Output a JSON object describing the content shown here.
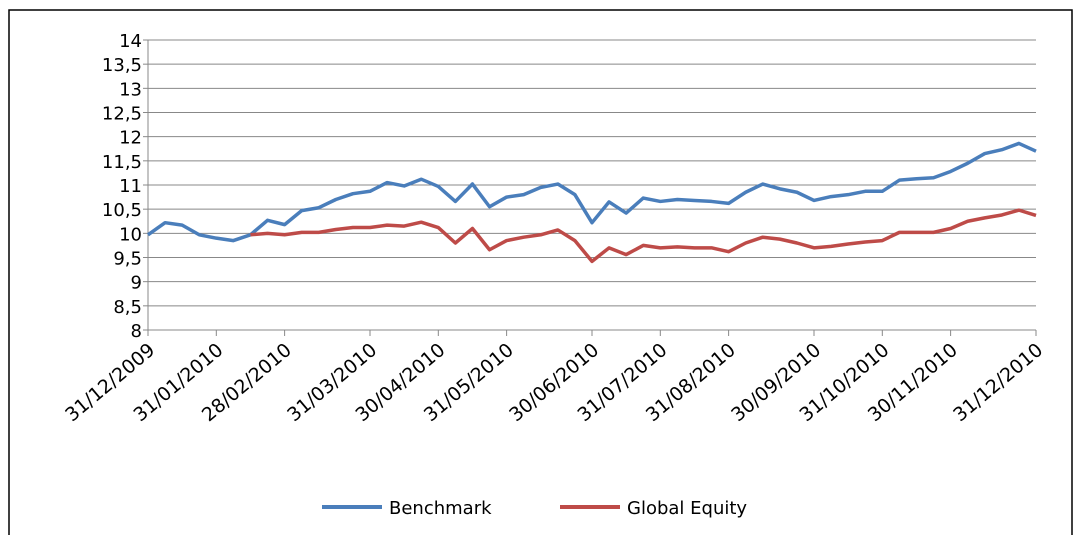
{
  "chart_data": {
    "type": "line",
    "categories": [
      "31/12/2009",
      null,
      null,
      null,
      "31/01/2010",
      null,
      null,
      null,
      "28/02/2010",
      null,
      null,
      null,
      null,
      "31/03/2010",
      null,
      null,
      null,
      "30/04/2010",
      null,
      null,
      null,
      "31/05/2010",
      null,
      null,
      null,
      null,
      "30/06/2010",
      null,
      null,
      null,
      "31/07/2010",
      null,
      null,
      null,
      "31/08/2010",
      null,
      null,
      null,
      null,
      "30/09/2010",
      null,
      null,
      null,
      "31/10/2010",
      null,
      null,
      null,
      "30/11/2010",
      null,
      null,
      null,
      null,
      "31/12/2010"
    ],
    "series": [
      {
        "name": "Benchmark",
        "color": "#4a7ebb",
        "values": [
          9.97,
          10.22,
          10.17,
          9.97,
          9.9,
          9.85,
          9.97,
          10.27,
          10.18,
          10.47,
          10.53,
          10.7,
          10.82,
          10.87,
          11.05,
          10.98,
          11.12,
          10.97,
          10.66,
          11.02,
          10.55,
          10.75,
          10.8,
          10.95,
          11.02,
          10.8,
          10.22,
          10.65,
          10.42,
          10.73,
          10.66,
          10.7,
          10.68,
          10.66,
          10.62,
          10.85,
          11.02,
          10.92,
          10.85,
          10.68,
          10.76,
          10.8,
          10.87,
          10.87,
          11.1,
          11.13,
          11.15,
          11.28,
          11.45,
          11.65,
          11.73,
          11.86,
          11.7
        ]
      },
      {
        "name": "Global Equity",
        "color": "#be4b48",
        "values": [
          null,
          null,
          null,
          null,
          null,
          null,
          9.97,
          10.0,
          9.97,
          10.02,
          10.02,
          10.08,
          10.12,
          10.12,
          10.17,
          10.15,
          10.23,
          10.12,
          9.8,
          10.1,
          9.66,
          9.85,
          9.92,
          9.97,
          10.07,
          9.85,
          9.42,
          9.7,
          9.56,
          9.75,
          9.7,
          9.72,
          9.7,
          9.7,
          9.62,
          9.8,
          9.92,
          9.88,
          9.8,
          9.7,
          9.73,
          9.78,
          9.82,
          9.85,
          10.02,
          10.02,
          10.02,
          10.1,
          10.25,
          10.32,
          10.38,
          10.48,
          10.37
        ]
      }
    ],
    "ylim": [
      8,
      14
    ],
    "yticks": [
      8,
      {
        "value": 8.5,
        "label": "8,5"
      },
      9,
      {
        "value": 9.5,
        "label": "9,5"
      },
      10,
      {
        "value": 10.5,
        "label": "10,5"
      },
      11,
      {
        "value": 11.5,
        "label": "11,5"
      },
      12,
      {
        "value": 12.5,
        "label": "12,5"
      },
      13,
      {
        "value": 13.5,
        "label": "13,5"
      },
      14
    ],
    "grid": true,
    "legend": "bottom"
  }
}
